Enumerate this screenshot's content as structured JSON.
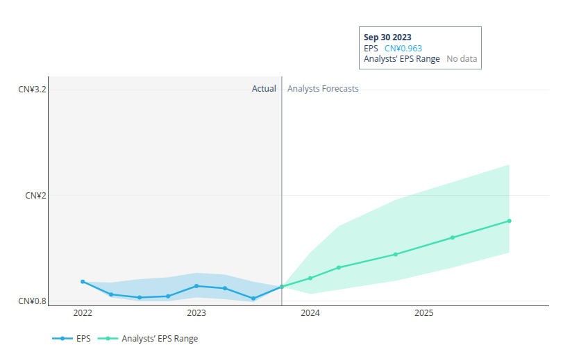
{
  "chart_data": {
    "type": "line",
    "xlim": [
      2021.7,
      2026.1
    ],
    "ylim": [
      0.75,
      3.35
    ],
    "xticks": [
      2022,
      2023,
      2024,
      2025
    ],
    "yticks": [
      {
        "value": 0.8,
        "label": "CN¥0.8"
      },
      {
        "value": 2.0,
        "label": "CN¥2"
      },
      {
        "value": 3.2,
        "label": "CN¥3.2"
      }
    ],
    "grid": true,
    "legend": "bottom",
    "marker": "circle",
    "series": [
      {
        "name": "EPS",
        "color": "#29abe2",
        "x": [
          2022.0,
          2022.25,
          2022.5,
          2022.75,
          2023.0,
          2023.25,
          2023.5,
          2023.75
        ],
        "values": [
          1.02,
          0.875,
          0.84,
          0.855,
          0.97,
          0.945,
          0.83,
          0.963
        ],
        "upper": [
          1.02,
          1.01,
          1.05,
          1.07,
          1.12,
          1.1,
          1.02,
          0.963
        ],
        "lower": [
          1.02,
          0.84,
          0.8,
          0.8,
          0.84,
          0.82,
          0.79,
          0.963
        ]
      },
      {
        "name": "Analysts’ EPS Range",
        "color": "#40e0b0",
        "x": [
          2023.75,
          2024.0,
          2024.25,
          2024.75,
          2025.25,
          2025.75
        ],
        "values": [
          0.963,
          1.06,
          1.18,
          1.33,
          1.52,
          1.71
        ],
        "upper": [
          0.963,
          1.35,
          1.65,
          1.95,
          2.15,
          2.35
        ],
        "lower": [
          0.963,
          0.88,
          0.93,
          1.03,
          1.18,
          1.35
        ]
      }
    ],
    "annotations": [
      {
        "text": "Actual",
        "x": 2023.75
      },
      {
        "text": "Analysts Forecasts",
        "x": 2023.75
      }
    ],
    "tooltip": {
      "title": "Sep 30 2023",
      "rows": [
        {
          "label": "EPS",
          "value": "CN¥0.963",
          "color": "#29abe2"
        },
        {
          "label": "Analysts’ EPS Range",
          "value": "No data",
          "color": "#888888"
        }
      ]
    }
  }
}
